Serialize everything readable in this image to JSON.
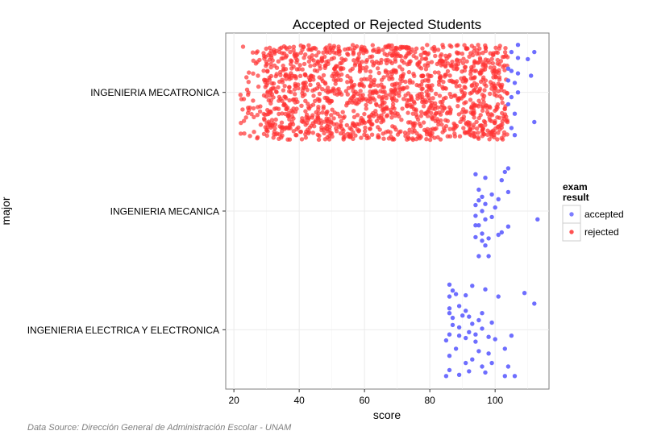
{
  "chart_data": {
    "type": "scatter",
    "title": "Accepted or Rejected Students",
    "xlabel": "score",
    "ylabel": "major",
    "xlim": [
      17.5,
      116.5
    ],
    "x_ticks": [
      20,
      40,
      60,
      80,
      100
    ],
    "categories": [
      "INGENIERIA ELECTRICA Y ELECTRONICA",
      "INGENIERIA MECANICA",
      "INGENIERIA MECATRONICA"
    ],
    "grid": true,
    "legend": {
      "title": "exam\nresult",
      "position": "right",
      "entries": [
        "accepted",
        "rejected"
      ]
    },
    "series": [
      {
        "name": "accepted",
        "color": "#6666ff",
        "points": [
          {
            "x": 107,
            "category": "INGENIERIA MECATRONICA",
            "jitter": 0.4
          },
          {
            "x": 105,
            "category": "INGENIERIA MECATRONICA",
            "jitter": 0.34
          },
          {
            "x": 112,
            "category": "INGENIERIA MECATRONICA",
            "jitter": 0.34
          },
          {
            "x": 107,
            "category": "INGENIERIA MECATRONICA",
            "jitter": 0.29
          },
          {
            "x": 110,
            "category": "INGENIERIA MECATRONICA",
            "jitter": 0.28
          },
          {
            "x": 104,
            "category": "INGENIERIA MECATRONICA",
            "jitter": 0.2
          },
          {
            "x": 105,
            "category": "INGENIERIA MECATRONICA",
            "jitter": 0.18
          },
          {
            "x": 107,
            "category": "INGENIERIA MECATRONICA",
            "jitter": 0.16
          },
          {
            "x": 111,
            "category": "INGENIERIA MECATRONICA",
            "jitter": 0.14
          },
          {
            "x": 104,
            "category": "INGENIERIA MECATRONICA",
            "jitter": 0.1
          },
          {
            "x": 106,
            "category": "INGENIERIA MECATRONICA",
            "jitter": 0.08
          },
          {
            "x": 107,
            "category": "INGENIERIA MECATRONICA",
            "jitter": 0.0
          },
          {
            "x": 105,
            "category": "INGENIERIA MECATRONICA",
            "jitter": -0.04
          },
          {
            "x": 104,
            "category": "INGENIERIA MECATRONICA",
            "jitter": -0.1
          },
          {
            "x": 106,
            "category": "INGENIERIA MECATRONICA",
            "jitter": -0.18
          },
          {
            "x": 112,
            "category": "INGENIERIA MECATRONICA",
            "jitter": -0.25
          },
          {
            "x": 105,
            "category": "INGENIERIA MECATRONICA",
            "jitter": -0.3
          },
          {
            "x": 106,
            "category": "INGENIERIA MECATRONICA",
            "jitter": -0.36
          },
          {
            "x": 104,
            "category": "INGENIERIA MECANICA",
            "jitter": 0.36
          },
          {
            "x": 103,
            "category": "INGENIERIA MECANICA",
            "jitter": 0.33
          },
          {
            "x": 94,
            "category": "INGENIERIA MECANICA",
            "jitter": 0.31
          },
          {
            "x": 97,
            "category": "INGENIERIA MECANICA",
            "jitter": 0.28
          },
          {
            "x": 102,
            "category": "INGENIERIA MECANICA",
            "jitter": 0.26
          },
          {
            "x": 95,
            "category": "INGENIERIA MECANICA",
            "jitter": 0.18
          },
          {
            "x": 104,
            "category": "INGENIERIA MECANICA",
            "jitter": 0.16
          },
          {
            "x": 99,
            "category": "INGENIERIA MECANICA",
            "jitter": 0.14
          },
          {
            "x": 96,
            "category": "INGENIERIA MECANICA",
            "jitter": 0.12
          },
          {
            "x": 101,
            "category": "INGENIERIA MECANICA",
            "jitter": 0.1
          },
          {
            "x": 95,
            "category": "INGENIERIA MECANICA",
            "jitter": 0.09
          },
          {
            "x": 97,
            "category": "INGENIERIA MECANICA",
            "jitter": 0.06
          },
          {
            "x": 94,
            "category": "INGENIERIA MECANICA",
            "jitter": 0.05
          },
          {
            "x": 100,
            "category": "INGENIERIA MECANICA",
            "jitter": 0.03
          },
          {
            "x": 96,
            "category": "INGENIERIA MECANICA",
            "jitter": 0.0
          },
          {
            "x": 94,
            "category": "INGENIERIA MECANICA",
            "jitter": -0.04
          },
          {
            "x": 99,
            "category": "INGENIERIA MECANICA",
            "jitter": -0.05
          },
          {
            "x": 97,
            "category": "INGENIERIA MECANICA",
            "jitter": -0.07
          },
          {
            "x": 113,
            "category": "INGENIERIA MECANICA",
            "jitter": -0.07
          },
          {
            "x": 94,
            "category": "INGENIERIA MECANICA",
            "jitter": -0.12
          },
          {
            "x": 95,
            "category": "INGENIERIA MECANICA",
            "jitter": -0.12
          },
          {
            "x": 104,
            "category": "INGENIERIA MECANICA",
            "jitter": -0.13
          },
          {
            "x": 102,
            "category": "INGENIERIA MECANICA",
            "jitter": -0.18
          },
          {
            "x": 96,
            "category": "INGENIERIA MECANICA",
            "jitter": -0.19
          },
          {
            "x": 101,
            "category": "INGENIERIA MECANICA",
            "jitter": -0.2
          },
          {
            "x": 94,
            "category": "INGENIERIA MECANICA",
            "jitter": -0.22
          },
          {
            "x": 98,
            "category": "INGENIERIA MECANICA",
            "jitter": -0.23
          },
          {
            "x": 96,
            "category": "INGENIERIA MECANICA",
            "jitter": -0.25
          },
          {
            "x": 97,
            "category": "INGENIERIA MECANICA",
            "jitter": -0.29
          },
          {
            "x": 95,
            "category": "INGENIERIA MECANICA",
            "jitter": -0.38
          },
          {
            "x": 98,
            "category": "INGENIERIA MECANICA",
            "jitter": -0.38
          },
          {
            "x": 86,
            "category": "INGENIERIA ELECTRICA Y ELECTRONICA",
            "jitter": 0.38
          },
          {
            "x": 93,
            "category": "INGENIERIA ELECTRICA Y ELECTRONICA",
            "jitter": 0.37
          },
          {
            "x": 97,
            "category": "INGENIERIA ELECTRICA Y ELECTRONICA",
            "jitter": 0.34
          },
          {
            "x": 87,
            "category": "INGENIERIA ELECTRICA Y ELECTRONICA",
            "jitter": 0.33
          },
          {
            "x": 109,
            "category": "INGENIERIA ELECTRICA Y ELECTRONICA",
            "jitter": 0.31
          },
          {
            "x": 88,
            "category": "INGENIERIA ELECTRICA Y ELECTRONICA",
            "jitter": 0.3
          },
          {
            "x": 91,
            "category": "INGENIERIA ELECTRICA Y ELECTRONICA",
            "jitter": 0.29
          },
          {
            "x": 101,
            "category": "INGENIERIA ELECTRICA Y ELECTRONICA",
            "jitter": 0.28
          },
          {
            "x": 86,
            "category": "INGENIERIA ELECTRICA Y ELECTRONICA",
            "jitter": 0.28
          },
          {
            "x": 112,
            "category": "INGENIERIA ELECTRICA Y ELECTRONICA",
            "jitter": 0.22
          },
          {
            "x": 89,
            "category": "INGENIERIA ELECTRICA Y ELECTRONICA",
            "jitter": 0.2
          },
          {
            "x": 86,
            "category": "INGENIERIA ELECTRICA Y ELECTRONICA",
            "jitter": 0.18
          },
          {
            "x": 91,
            "category": "INGENIERIA ELECTRICA Y ELECTRONICA",
            "jitter": 0.16
          },
          {
            "x": 86,
            "category": "INGENIERIA ELECTRICA Y ELECTRONICA",
            "jitter": 0.14
          },
          {
            "x": 96,
            "category": "INGENIERIA ELECTRICA Y ELECTRONICA",
            "jitter": 0.14
          },
          {
            "x": 90,
            "category": "INGENIERIA ELECTRICA Y ELECTRONICA",
            "jitter": 0.12
          },
          {
            "x": 92,
            "category": "INGENIERIA ELECTRICA Y ELECTRONICA",
            "jitter": 0.11
          },
          {
            "x": 87,
            "category": "INGENIERIA ELECTRICA Y ELECTRONICA",
            "jitter": 0.1
          },
          {
            "x": 95,
            "category": "INGENIERIA ELECTRICA Y ELECTRONICA",
            "jitter": 0.08
          },
          {
            "x": 99,
            "category": "INGENIERIA ELECTRICA Y ELECTRONICA",
            "jitter": 0.06
          },
          {
            "x": 93,
            "category": "INGENIERIA ELECTRICA Y ELECTRONICA",
            "jitter": 0.05
          },
          {
            "x": 87,
            "category": "INGENIERIA ELECTRICA Y ELECTRONICA",
            "jitter": 0.04
          },
          {
            "x": 89,
            "category": "INGENIERIA ELECTRICA Y ELECTRONICA",
            "jitter": 0.02
          },
          {
            "x": 96,
            "category": "INGENIERIA ELECTRICA Y ELECTRONICA",
            "jitter": 0.01
          },
          {
            "x": 92,
            "category": "INGENIERIA ELECTRICA Y ELECTRONICA",
            "jitter": -0.02
          },
          {
            "x": 94,
            "category": "INGENIERIA ELECTRICA Y ELECTRONICA",
            "jitter": -0.04
          },
          {
            "x": 86,
            "category": "INGENIERIA ELECTRICA Y ELECTRONICA",
            "jitter": -0.04
          },
          {
            "x": 89,
            "category": "INGENIERIA ELECTRICA Y ELECTRONICA",
            "jitter": -0.05
          },
          {
            "x": 105,
            "category": "INGENIERIA ELECTRICA Y ELECTRONICA",
            "jitter": -0.05
          },
          {
            "x": 98,
            "category": "INGENIERIA ELECTRICA Y ELECTRONICA",
            "jitter": -0.06
          },
          {
            "x": 91,
            "category": "INGENIERIA ELECTRICA Y ELECTRONICA",
            "jitter": -0.07
          },
          {
            "x": 100,
            "category": "INGENIERIA ELECTRICA Y ELECTRONICA",
            "jitter": -0.08
          },
          {
            "x": 85,
            "category": "INGENIERIA ELECTRICA Y ELECTRONICA",
            "jitter": -0.09
          },
          {
            "x": 94,
            "category": "INGENIERIA ELECTRICA Y ELECTRONICA",
            "jitter": -0.1
          },
          {
            "x": 103,
            "category": "INGENIERIA ELECTRICA Y ELECTRONICA",
            "jitter": -0.16
          },
          {
            "x": 88,
            "category": "INGENIERIA ELECTRICA Y ELECTRONICA",
            "jitter": -0.16
          },
          {
            "x": 95,
            "category": "INGENIERIA ELECTRICA Y ELECTRONICA",
            "jitter": -0.18
          },
          {
            "x": 98,
            "category": "INGENIERIA ELECTRICA Y ELECTRONICA",
            "jitter": -0.2
          },
          {
            "x": 86,
            "category": "INGENIERIA ELECTRICA Y ELECTRONICA",
            "jitter": -0.22
          },
          {
            "x": 93,
            "category": "INGENIERIA ELECTRICA Y ELECTRONICA",
            "jitter": -0.25
          },
          {
            "x": 91,
            "category": "INGENIERIA ELECTRICA Y ELECTRONICA",
            "jitter": -0.28
          },
          {
            "x": 99,
            "category": "INGENIERIA ELECTRICA Y ELECTRONICA",
            "jitter": -0.28
          },
          {
            "x": 96,
            "category": "INGENIERIA ELECTRICA Y ELECTRONICA",
            "jitter": -0.31
          },
          {
            "x": 104,
            "category": "INGENIERIA ELECTRICA Y ELECTRONICA",
            "jitter": -0.31
          },
          {
            "x": 86,
            "category": "INGENIERIA ELECTRICA Y ELECTRONICA",
            "jitter": -0.34
          },
          {
            "x": 92,
            "category": "INGENIERIA ELECTRICA Y ELECTRONICA",
            "jitter": -0.35
          },
          {
            "x": 97,
            "category": "INGENIERIA ELECTRICA Y ELECTRONICA",
            "jitter": -0.36
          },
          {
            "x": 89,
            "category": "INGENIERIA ELECTRICA Y ELECTRONICA",
            "jitter": -0.38
          },
          {
            "x": 85,
            "category": "INGENIERIA ELECTRICA Y ELECTRONICA",
            "jitter": -0.39
          },
          {
            "x": 103,
            "category": "INGENIERIA ELECTRICA Y ELECTRONICA",
            "jitter": -0.39
          },
          {
            "x": 106,
            "category": "INGENIERIA ELECTRICA Y ELECTRONICA",
            "jitter": -0.39
          }
        ]
      },
      {
        "name": "rejected",
        "color": "#ff3333",
        "category": "INGENIERIA MECATRONICA",
        "count": 1500,
        "score_range": [
          22,
          104
        ],
        "jitter_range": [
          -0.4,
          0.4
        ]
      }
    ]
  },
  "caption": "Data Source: Dirección General de Administración Escolar - UNAM"
}
